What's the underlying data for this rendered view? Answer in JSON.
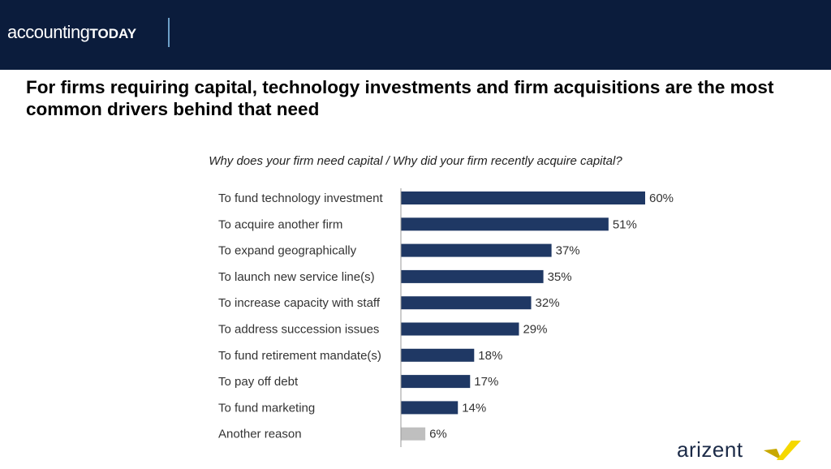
{
  "header": {
    "logo_main": "accounting",
    "logo_bold": "TODAY"
  },
  "title": "For firms requiring capital, technology investments and firm acquisitions are the most common drivers behind that need",
  "footer": {
    "logo": "arizent"
  },
  "chart_data": {
    "type": "bar",
    "orientation": "horizontal",
    "title": "Why does your firm need capital / Why did your firm recently acquire capital?",
    "categories": [
      "To fund technology investment",
      "To acquire another firm",
      "To expand geographically",
      "To launch new service line(s)",
      "To increase capacity with staff",
      "To address succession issues",
      "To fund retirement mandate(s)",
      "To pay off debt",
      "To fund marketing",
      "Another reason"
    ],
    "values": [
      60,
      51,
      37,
      35,
      32,
      29,
      18,
      17,
      14,
      6
    ],
    "value_labels": [
      "60%",
      "51%",
      "37%",
      "35%",
      "32%",
      "29%",
      "18%",
      "17%",
      "14%",
      "6%"
    ],
    "unit": "%",
    "colors": [
      "#1f3864",
      "#1f3864",
      "#1f3864",
      "#1f3864",
      "#1f3864",
      "#1f3864",
      "#1f3864",
      "#1f3864",
      "#1f3864",
      "#bfbfbf"
    ],
    "xlim": [
      0,
      60
    ],
    "grid": false
  }
}
